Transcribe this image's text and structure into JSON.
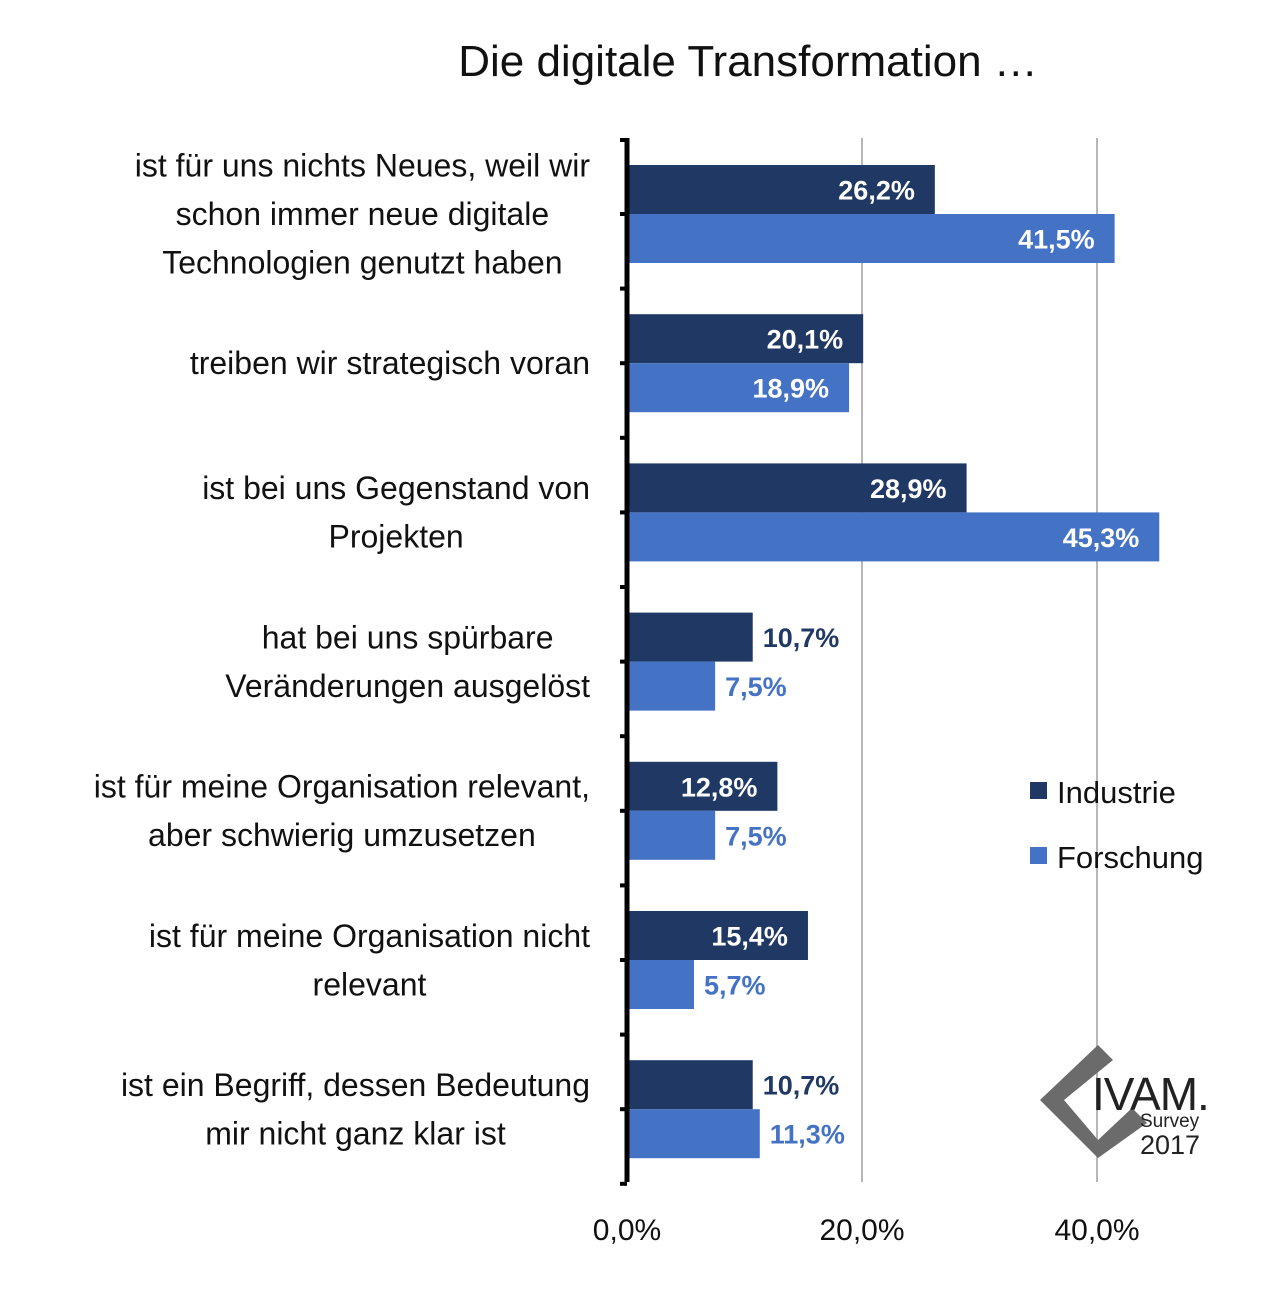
{
  "colors": {
    "industrie": "#1f3864",
    "forschung": "#4472c4",
    "grid": "#b7b7b7",
    "axis": "#000000",
    "logo_gray": "#6b6b6b"
  },
  "logo": {
    "brand": "IVAM.",
    "line1": "Survey",
    "line2": "2017"
  },
  "chart_data": {
    "type": "bar",
    "orientation": "horizontal",
    "title": "Die digitale Transformation …",
    "categories": [
      [
        "ist für uns nichts Neues, weil wir",
        "schon immer neue digitale",
        "Technologien genutzt haben"
      ],
      [
        "treiben wir strategisch voran"
      ],
      [
        "ist bei uns Gegenstand von",
        "Projekten"
      ],
      [
        "hat bei uns spürbare",
        "Veränderungen ausgelöst"
      ],
      [
        "ist für meine Organisation relevant,",
        "aber schwierig umzusetzen"
      ],
      [
        "ist für meine Organisation nicht",
        "relevant"
      ],
      [
        "ist ein Begriff, dessen Bedeutung",
        "mir nicht ganz klar ist"
      ]
    ],
    "series": [
      {
        "name": "Industrie",
        "color": "#1f3864",
        "values": [
          26.2,
          20.1,
          28.9,
          10.7,
          12.8,
          15.4,
          10.7
        ],
        "labels": [
          "26,2%",
          "20,1%",
          "28,9%",
          "10,7%",
          "12,8%",
          "15,4%",
          "10,7%"
        ]
      },
      {
        "name": "Forschung",
        "color": "#4472c4",
        "values": [
          41.5,
          18.9,
          45.3,
          7.5,
          7.5,
          5.7,
          11.3
        ],
        "labels": [
          "41,5%",
          "18,9%",
          "45,3%",
          "7,5%",
          "7,5%",
          "5,7%",
          "11,3%"
        ]
      }
    ],
    "x_ticks": [
      0,
      20,
      40
    ],
    "x_tick_labels": [
      "0,0%",
      "20,0%",
      "40,0%"
    ],
    "xlim": [
      0,
      50
    ],
    "grid": true,
    "legend_position": "right"
  }
}
